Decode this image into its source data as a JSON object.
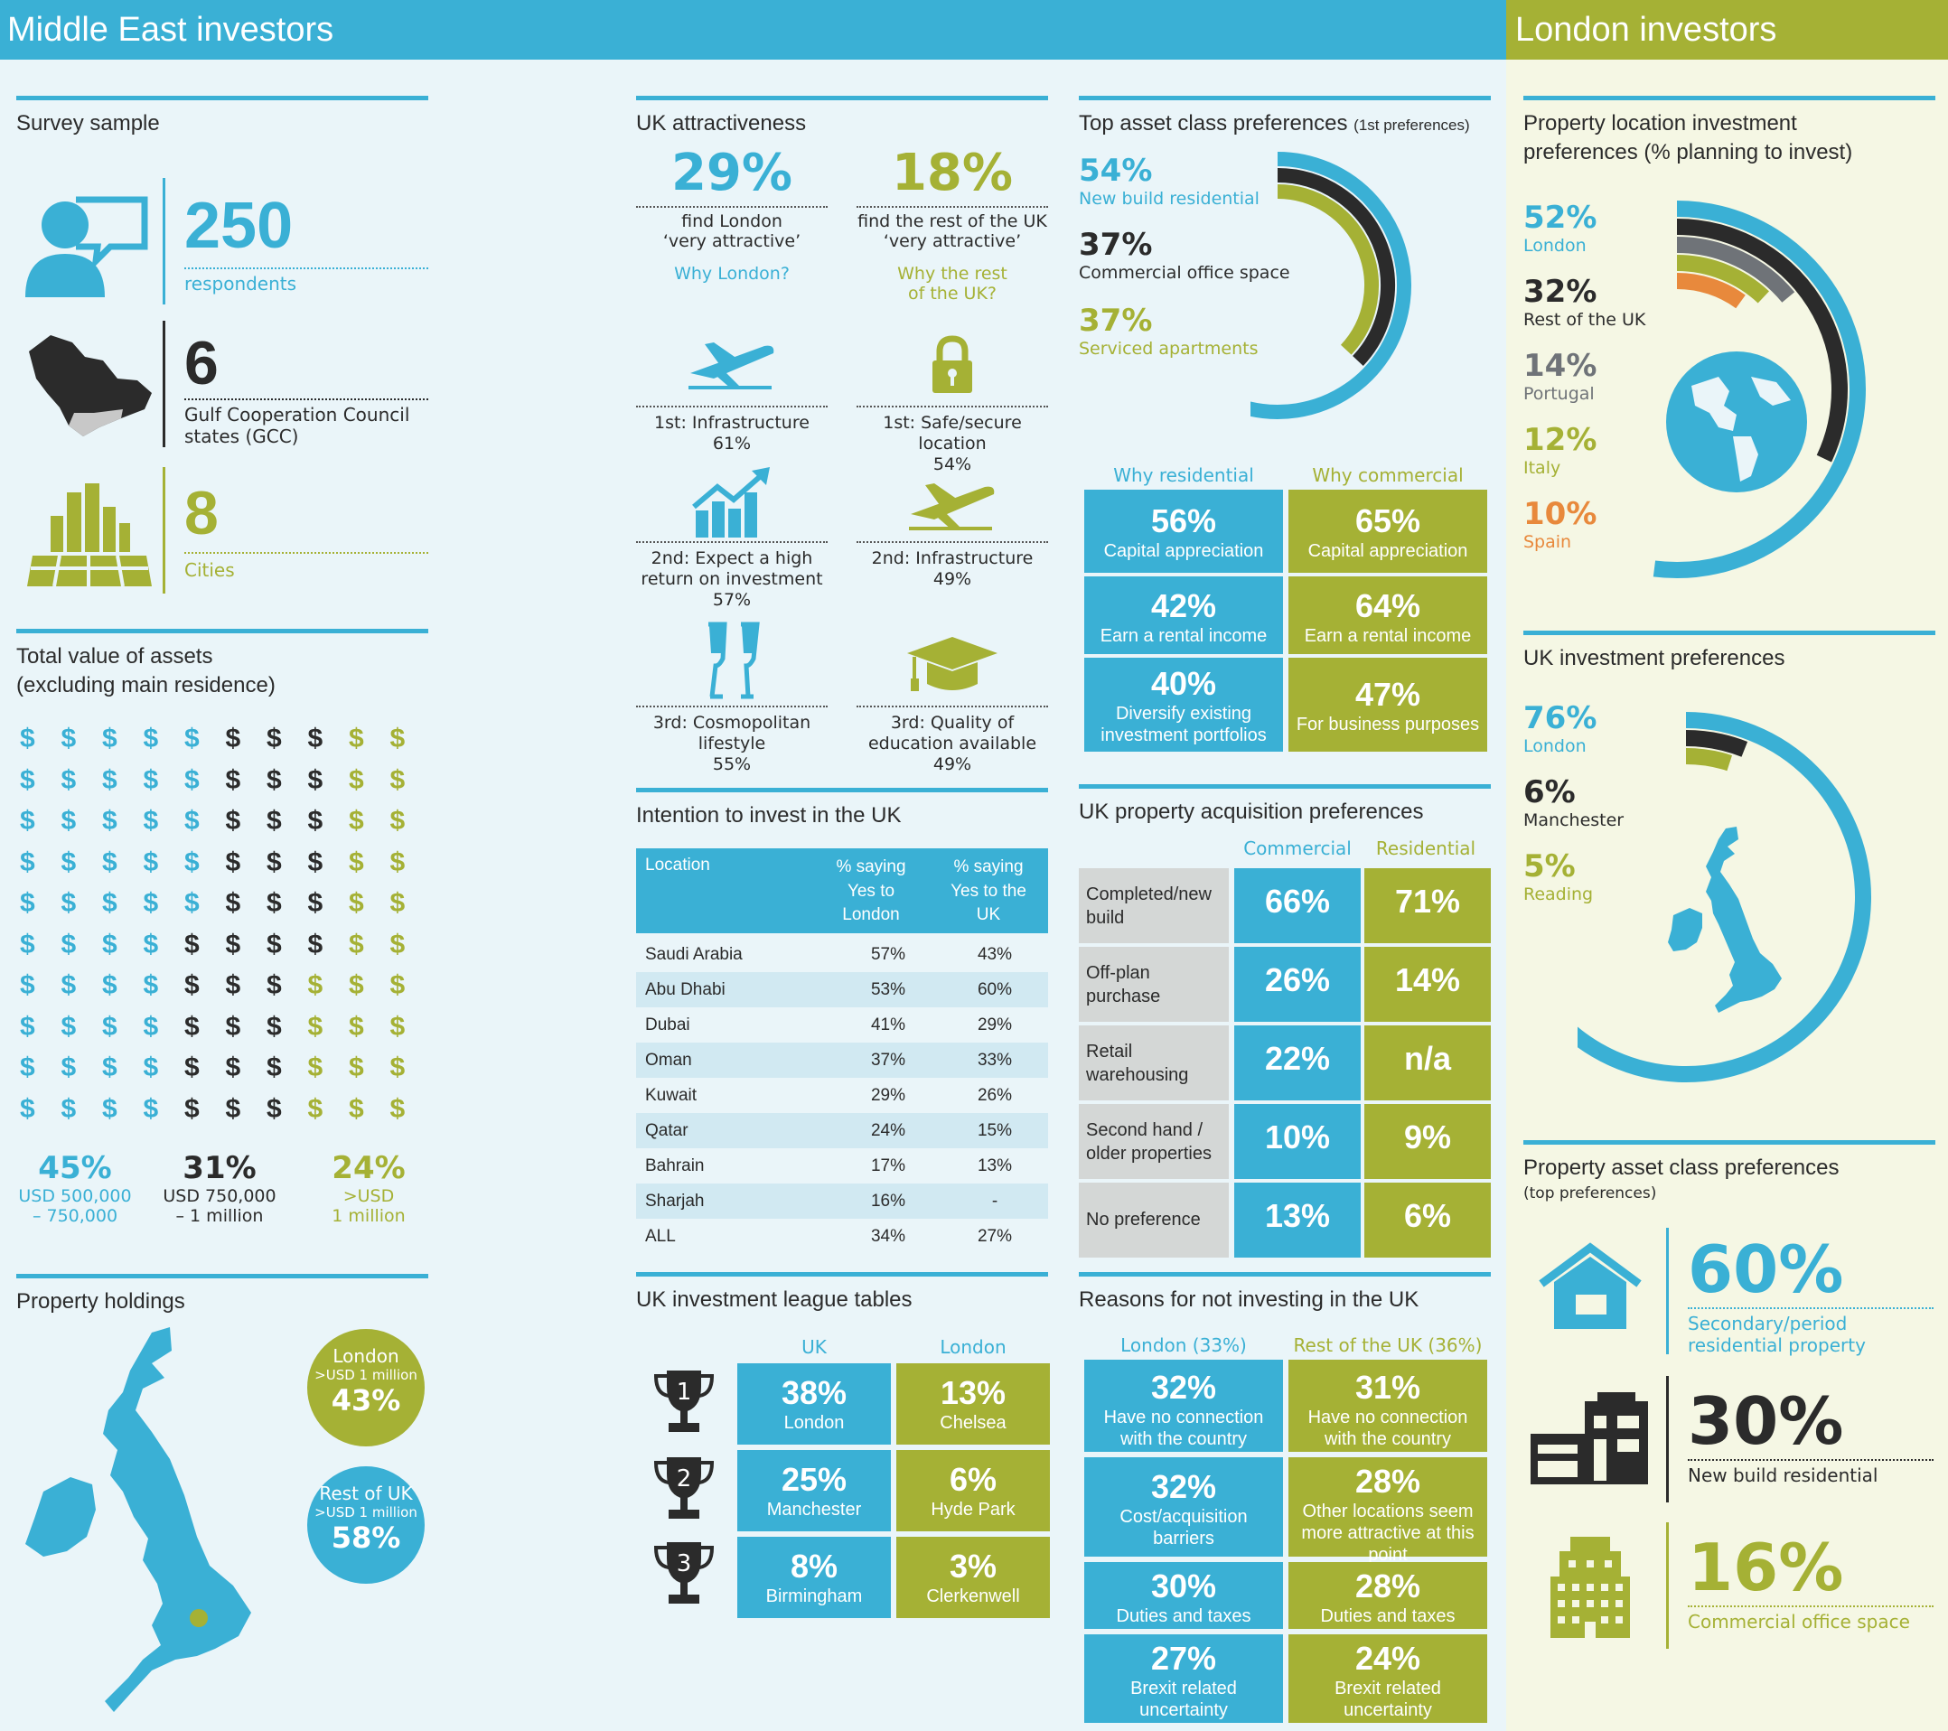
{
  "colors": {
    "blue": "#3ab0d5",
    "green": "#a5b135",
    "dark": "#2b2b2b",
    "grey": "#6f7378",
    "orange": "#e8893c"
  },
  "headers": {
    "left": "Middle East investors",
    "right": "London investors"
  },
  "survey": {
    "title": "Survey sample",
    "respondents": {
      "value": "250",
      "label": "respondents",
      "icon": "person-speech-icon"
    },
    "gcc": {
      "value": "6",
      "label_line1": "Gulf Cooperation Council",
      "label_line2": "states (GCC)",
      "icon": "gulf-map-icon"
    },
    "cities": {
      "value": "8",
      "label": "Cities",
      "icon": "city-icon"
    }
  },
  "assets": {
    "title_line1": "Total value of assets",
    "title_line2": "(excluding main residence)",
    "symbol": "$",
    "groups": [
      {
        "pct": "45%",
        "label_line1": "USD 500,000",
        "label_line2": "– 750,000",
        "share": 45,
        "color": "blue"
      },
      {
        "pct": "31%",
        "label_line1": "USD 750,000",
        "label_line2": "– 1 million",
        "share": 31,
        "color": "dark"
      },
      {
        "pct": "24%",
        "label_line1": ">USD",
        "label_line2": "1 million",
        "share": 24,
        "color": "green"
      }
    ]
  },
  "holdings": {
    "title": "Property holdings",
    "london": {
      "label": "London",
      "sub": ">USD 1 million",
      "pct": "43%"
    },
    "rest": {
      "label": "Rest of UK",
      "sub": ">USD 1 million",
      "pct": "58%"
    }
  },
  "attract": {
    "title": "UK attractiveness",
    "london": {
      "pct": "29%",
      "label_line1": "find London",
      "label_line2": "‘very attractive’",
      "why": "Why London?"
    },
    "rest": {
      "pct": "18%",
      "label_line1": "find the rest of the UK",
      "label_line2": "‘very attractive’",
      "why_line1": "Why the rest",
      "why_line2": "of the UK?"
    },
    "london_reasons": [
      {
        "line1": "1st: Infrastructure",
        "line2": "61%",
        "line3": "",
        "icon": "airplane-icon"
      },
      {
        "line1": "2nd: Expect a high",
        "line2": "return on investment",
        "line3": "57%",
        "icon": "growth-chart-icon"
      },
      {
        "line1": "3rd: Cosmopolitan",
        "line2": "lifestyle",
        "line3": "55%",
        "icon": "champagne-icon"
      }
    ],
    "rest_reasons": [
      {
        "line1": "1st: Safe/secure location",
        "line2": "54%",
        "line3": "",
        "icon": "padlock-icon"
      },
      {
        "line1": "2nd: Infrastructure",
        "line2": "49%",
        "line3": "",
        "icon": "airplane-icon"
      },
      {
        "line1": "3rd: Quality of",
        "line2": "education available",
        "line3": "49%",
        "icon": "graduation-cap-icon"
      }
    ]
  },
  "intention": {
    "title": "Intention to invest in the UK",
    "head": {
      "c1": "Location",
      "c2_line1": "% saying",
      "c2_line2": "Yes to",
      "c2_line3": "London",
      "c3_line1": "% saying",
      "c3_line2": "Yes to the",
      "c3_line3": "UK"
    },
    "rows": [
      {
        "loc": "Saudi Arabia",
        "london": "57%",
        "uk": "43%"
      },
      {
        "loc": "Abu Dhabi",
        "london": "53%",
        "uk": "60%"
      },
      {
        "loc": "Dubai",
        "london": "41%",
        "uk": "29%"
      },
      {
        "loc": "Oman",
        "london": "37%",
        "uk": "33%"
      },
      {
        "loc": "Kuwait",
        "london": "29%",
        "uk": "26%"
      },
      {
        "loc": "Qatar",
        "london": "24%",
        "uk": "15%"
      },
      {
        "loc": "Bahrain",
        "london": "17%",
        "uk": "13%"
      },
      {
        "loc": "Sharjah",
        "london": "16%",
        "uk": "-"
      },
      {
        "loc": "ALL",
        "london": "34%",
        "uk": "27%"
      }
    ]
  },
  "league": {
    "title": "UK investment league tables",
    "col_uk": "UK",
    "col_london": "London",
    "ranks": [
      {
        "num": "1",
        "uk_pct": "38%",
        "uk_name": "London",
        "ldn_pct": "13%",
        "ldn_name": "Chelsea"
      },
      {
        "num": "2",
        "uk_pct": "25%",
        "uk_name": "Manchester",
        "ldn_pct": "6%",
        "ldn_name": "Hyde Park"
      },
      {
        "num": "3",
        "uk_pct": "8%",
        "uk_name": "Birmingham",
        "ldn_pct": "3%",
        "ldn_name": "Clerkenwell"
      }
    ]
  },
  "topasset": {
    "title": "Top asset class preferences",
    "title_note": "(1st preferences)",
    "items": [
      {
        "pct": "54%",
        "label": "New build residential",
        "value": 54,
        "color": "blue"
      },
      {
        "pct": "37%",
        "label": "Commercial office space",
        "value": 37,
        "color": "dark"
      },
      {
        "pct": "37%",
        "label": "Serviced apartments",
        "value": 37,
        "color": "green"
      }
    ]
  },
  "why": {
    "res_title": "Why residential",
    "com_title": "Why commercial",
    "res": [
      {
        "pct": "56%",
        "label_line1": "Capital appreciation",
        "label_line2": ""
      },
      {
        "pct": "42%",
        "label_line1": "Earn a rental income",
        "label_line2": ""
      },
      {
        "pct": "40%",
        "label_line1": "Diversify existing",
        "label_line2": "investment portfolios"
      }
    ],
    "com": [
      {
        "pct": "65%",
        "label_line1": "Capital appreciation"
      },
      {
        "pct": "64%",
        "label_line1": "Earn a rental income"
      },
      {
        "pct": "47%",
        "label_line1": "For business purposes"
      }
    ]
  },
  "acq": {
    "title": "UK property acquisition preferences",
    "col_com": "Commercial",
    "col_res": "Residential",
    "rows": [
      {
        "line1": "Completed/new",
        "line2": "build",
        "com": "66%",
        "res": "71%"
      },
      {
        "line1": "Off-plan",
        "line2": "purchase",
        "com": "26%",
        "res": "14%"
      },
      {
        "line1": "Retail",
        "line2": "warehousing",
        "com": "22%",
        "res": "n/a"
      },
      {
        "line1": "Second hand /",
        "line2": "older properties",
        "com": "10%",
        "res": "9%"
      },
      {
        "line1": "No preference",
        "line2": "",
        "com": "13%",
        "res": "6%"
      }
    ]
  },
  "reasons": {
    "title": "Reasons for not investing in the UK",
    "col_london": "London (33%)",
    "col_rest": "Rest of the UK (36%)",
    "london": [
      {
        "pct": "32%",
        "line1": "Have no connection",
        "line2": "with the country",
        "line3": ""
      },
      {
        "pct": "32%",
        "line1": "Cost/acquisition",
        "line2": "barriers",
        "line3": ""
      },
      {
        "pct": "30%",
        "line1": "Duties and taxes",
        "line2": "",
        "line3": ""
      },
      {
        "pct": "27%",
        "line1": "Brexit related",
        "line2": "uncertainty",
        "line3": ""
      }
    ],
    "rest": [
      {
        "pct": "31%",
        "line1": "Have no connection",
        "line2": "with the country",
        "line3": ""
      },
      {
        "pct": "28%",
        "line1": "Other locations seem",
        "line2": "more attractive at this",
        "line3": "point"
      },
      {
        "pct": "28%",
        "line1": "Duties and taxes",
        "line2": "",
        "line3": ""
      },
      {
        "pct": "24%",
        "line1": "Brexit related",
        "line2": "uncertainty",
        "line3": ""
      }
    ]
  },
  "loc_pref": {
    "title_line1": "Property location investment",
    "title_line2": "preferences (% planning to invest)",
    "items": [
      {
        "pct": "52%",
        "label": "London",
        "value": 52,
        "color": "blue"
      },
      {
        "pct": "32%",
        "label": "Rest of the UK",
        "value": 32,
        "color": "dark"
      },
      {
        "pct": "14%",
        "label": "Portugal",
        "value": 14,
        "color": "grey"
      },
      {
        "pct": "12%",
        "label": "Italy",
        "value": 12,
        "color": "green"
      },
      {
        "pct": "10%",
        "label": "Spain",
        "value": 10,
        "color": "orange"
      }
    ]
  },
  "uk_pref": {
    "title": "UK investment preferences",
    "items": [
      {
        "pct": "76%",
        "label": "London",
        "value": 76,
        "color": "blue"
      },
      {
        "pct": "6%",
        "label": "Manchester",
        "value": 6,
        "color": "dark"
      },
      {
        "pct": "5%",
        "label": "Reading",
        "value": 5,
        "color": "green"
      }
    ]
  },
  "asset_pref": {
    "title": "Property asset class preferences",
    "subtitle": "(top preferences)",
    "items": [
      {
        "pct": "60%",
        "line1": "Secondary/period",
        "line2": "residential property",
        "icon": "house-icon",
        "color": "blue"
      },
      {
        "pct": "30%",
        "line1": "New build residential",
        "line2": "",
        "icon": "new-building-icon",
        "color": "dark"
      },
      {
        "pct": "16%",
        "line1": "Commercial office space",
        "line2": "",
        "icon": "office-tower-icon",
        "color": "green"
      }
    ]
  }
}
